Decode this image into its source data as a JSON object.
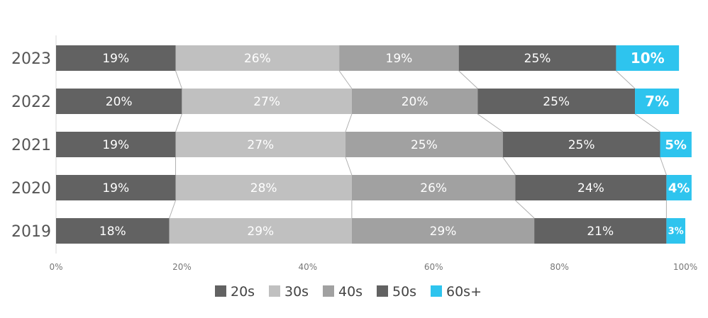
{
  "chart_data": {
    "type": "bar",
    "orientation": "horizontal",
    "stacked": true,
    "percent": true,
    "categories": [
      "2023",
      "2022",
      "2021",
      "2020",
      "2019"
    ],
    "series": [
      {
        "name": "20s",
        "color": "#626262",
        "values": [
          19,
          20,
          19,
          19,
          18
        ],
        "labels": [
          "19%",
          "20%",
          "19%",
          "19%",
          "18%"
        ]
      },
      {
        "name": "30s",
        "color": "#c0c0c0",
        "values": [
          26,
          27,
          27,
          28,
          29
        ],
        "labels": [
          "26%",
          "27%",
          "27%",
          "28%",
          "29%"
        ]
      },
      {
        "name": "40s",
        "color": "#a1a1a1",
        "values": [
          19,
          20,
          25,
          26,
          29
        ],
        "labels": [
          "19%",
          "20%",
          "25%",
          "26%",
          "29%"
        ]
      },
      {
        "name": "50s",
        "color": "#626262",
        "values": [
          25,
          25,
          25,
          24,
          21
        ],
        "labels": [
          "25%",
          "25%",
          "25%",
          "24%",
          "21%"
        ]
      },
      {
        "name": "60s+",
        "color": "#2ec4ee",
        "values": [
          10,
          7,
          5,
          4,
          3
        ],
        "labels": [
          "10%",
          "7%",
          "5%",
          "4%",
          "3%"
        ]
      }
    ],
    "xlim": [
      0,
      100
    ],
    "xticks": [
      "0%",
      "20%",
      "40%",
      "60%",
      "80%",
      "100%"
    ],
    "title": "",
    "xlabel": "",
    "ylabel": "",
    "legend": "bottom",
    "grid": false,
    "connector_color": "#b0b0b0"
  }
}
